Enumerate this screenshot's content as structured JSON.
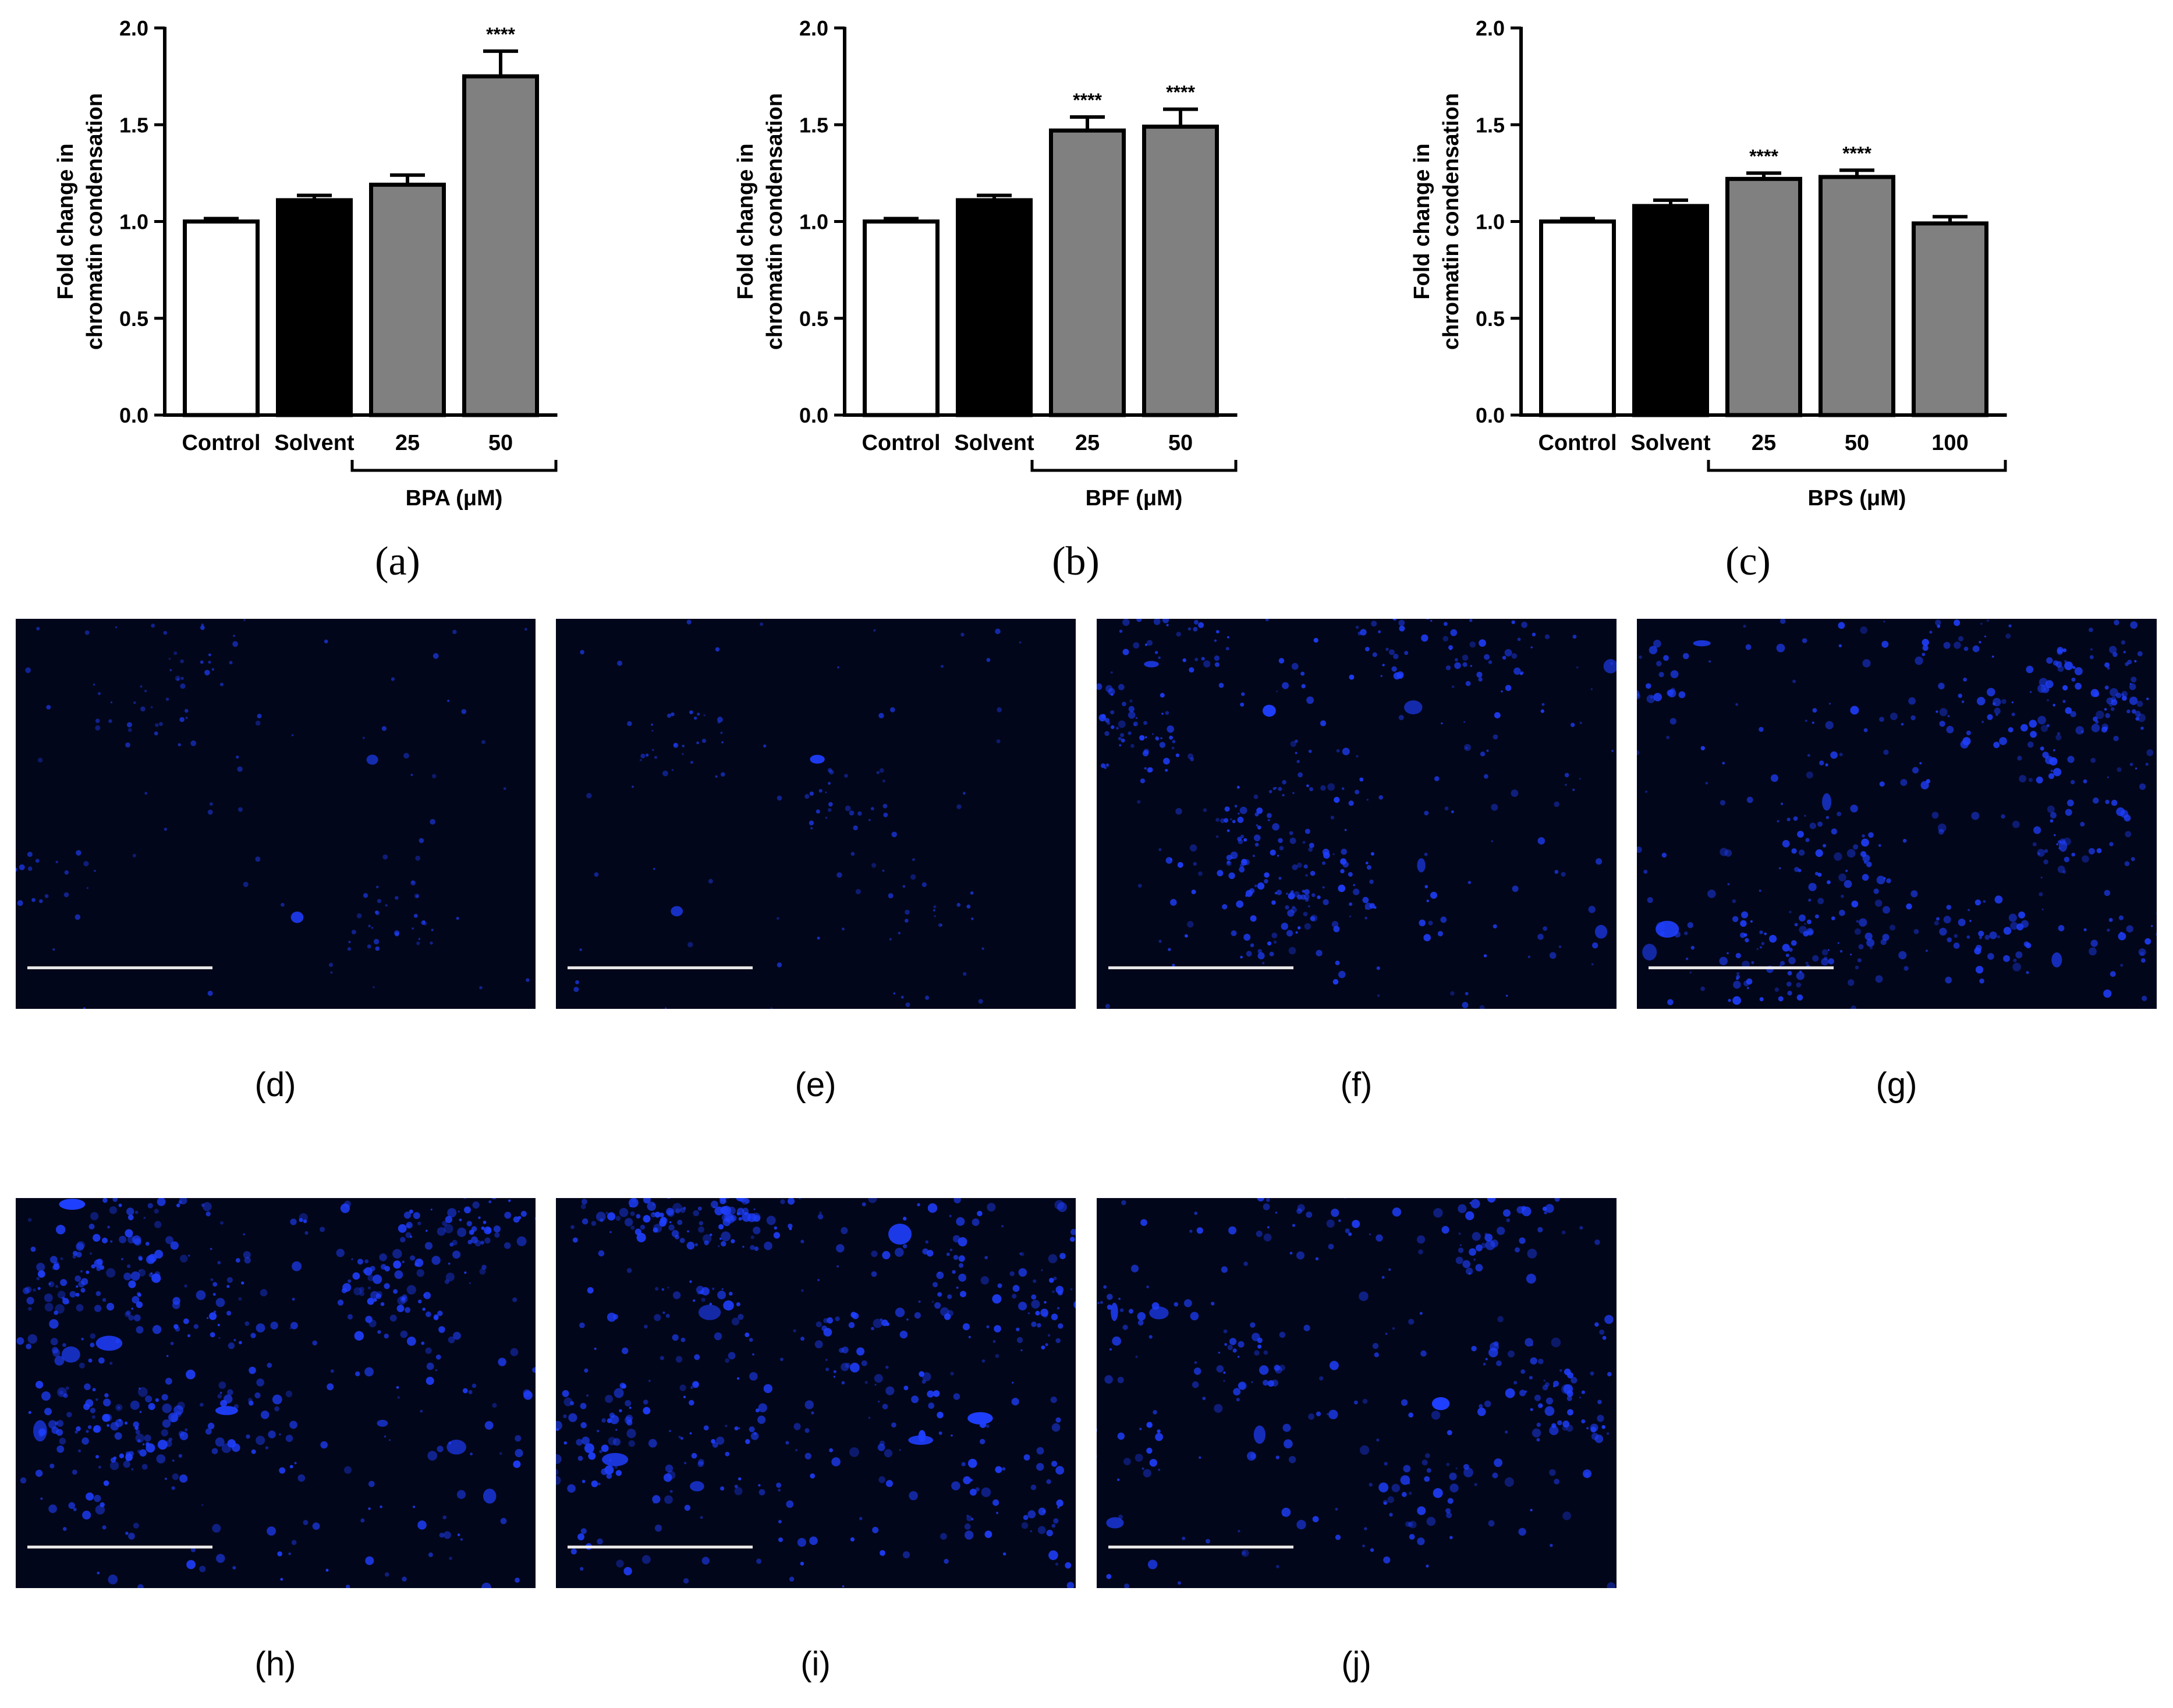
{
  "chart_data": [
    {
      "type": "bar",
      "panel": "(a)",
      "ylabel": [
        "Fold change in",
        "chromatin condensation"
      ],
      "ylim": [
        0,
        2.0
      ],
      "yticks": [
        "0.0",
        "0.5",
        "1.0",
        "1.5",
        "2.0"
      ],
      "categories": [
        "Control",
        "Solvent",
        "25",
        "50"
      ],
      "values": [
        1.0,
        1.11,
        1.19,
        1.75
      ],
      "errors": [
        0.015,
        0.025,
        0.05,
        0.13
      ],
      "fills": [
        "#ffffff",
        "#000000",
        "#808080",
        "#808080"
      ],
      "significance": [
        "",
        "",
        "",
        "****"
      ],
      "group_label": "BPA (μM)",
      "group_span": [
        2,
        3
      ]
    },
    {
      "type": "bar",
      "panel": "(b)",
      "ylabel": [
        "Fold change in",
        "chromatin condensation"
      ],
      "ylim": [
        0,
        2.0
      ],
      "yticks": [
        "0.0",
        "0.5",
        "1.0",
        "1.5",
        "2.0"
      ],
      "categories": [
        "Control",
        "Solvent",
        "25",
        "50"
      ],
      "values": [
        1.0,
        1.11,
        1.47,
        1.49
      ],
      "errors": [
        0.015,
        0.025,
        0.07,
        0.09
      ],
      "fills": [
        "#ffffff",
        "#000000",
        "#808080",
        "#808080"
      ],
      "significance": [
        "",
        "",
        "****",
        "****"
      ],
      "group_label": "BPF (μM)",
      "group_span": [
        2,
        3
      ]
    },
    {
      "type": "bar",
      "panel": "(c)",
      "ylabel": [
        "Fold change in",
        "chromatin condensation"
      ],
      "ylim": [
        0,
        2.0
      ],
      "yticks": [
        "0.0",
        "0.5",
        "1.0",
        "1.5",
        "2.0"
      ],
      "categories": [
        "Control",
        "Solvent",
        "25",
        "50",
        "100"
      ],
      "values": [
        1.0,
        1.08,
        1.22,
        1.23,
        0.99
      ],
      "errors": [
        0.015,
        0.03,
        0.03,
        0.035,
        0.035
      ],
      "fills": [
        "#ffffff",
        "#000000",
        "#808080",
        "#808080",
        "#808080"
      ],
      "significance": [
        "",
        "",
        "****",
        "****",
        ""
      ],
      "group_label": "BPS (μM)",
      "group_span": [
        2,
        4
      ]
    }
  ],
  "micrographs": [
    {
      "label": "(d)",
      "density": 140,
      "blob": 3.5,
      "bright": 0.55,
      "seed": 11
    },
    {
      "label": "(e)",
      "density": 120,
      "blob": 3.5,
      "bright": 0.6,
      "seed": 23
    },
    {
      "label": "(f)",
      "density": 420,
      "blob": 5,
      "bright": 0.9,
      "seed": 37
    },
    {
      "label": "(g)",
      "density": 520,
      "blob": 6,
      "bright": 0.85,
      "seed": 41
    },
    {
      "label": "(h)",
      "density": 560,
      "blob": 7,
      "bright": 0.9,
      "seed": 53
    },
    {
      "label": "(i)",
      "density": 560,
      "blob": 7,
      "bright": 0.9,
      "seed": 67
    },
    {
      "label": "(j)",
      "density": 360,
      "blob": 7,
      "bright": 0.85,
      "seed": 79
    }
  ],
  "colors": {
    "micro_background": "#02061a",
    "nuclei": "#1f3fff",
    "scale_bar": "#e6e6e6"
  }
}
